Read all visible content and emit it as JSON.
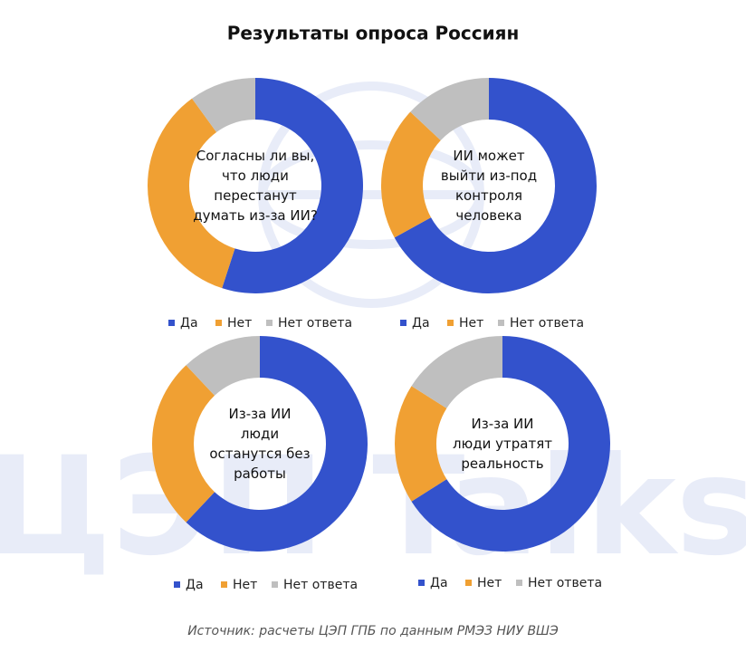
{
  "title": "Результаты опроса Россиян",
  "watermark": "ЦЭП Talks",
  "source": "Источник: расчеты ЦЭП ГПБ по данным РМЭЗ НИУ ВШЭ",
  "chart_data": [
    {
      "type": "donut",
      "title": "Согласны ли вы,\nчто люди перестанут\nдумать из-за ИИ?",
      "categories": [
        "Да",
        "Нет",
        "Нет ответа"
      ],
      "values": [
        55,
        35,
        10
      ],
      "colors": [
        "#3352cc",
        "#f0a033",
        "#bfbfbf"
      ]
    },
    {
      "type": "donut",
      "title": "ИИ может\nвыйти из-под\nконтроля\nчеловека",
      "categories": [
        "Да",
        "Нет",
        "Нет ответа"
      ],
      "values": [
        67,
        20,
        13
      ],
      "colors": [
        "#3352cc",
        "#f0a033",
        "#bfbfbf"
      ]
    },
    {
      "type": "donut",
      "title": "Из-за ИИ\nлюди\nостанутся без\nработы",
      "categories": [
        "Да",
        "Нет",
        "Нет ответа"
      ],
      "values": [
        62,
        26,
        12
      ],
      "colors": [
        "#3352cc",
        "#f0a033",
        "#bfbfbf"
      ]
    },
    {
      "type": "donut",
      "title": "Из-за ИИ\nлюди утратят\nреальность",
      "categories": [
        "Да",
        "Нет",
        "Нет ответа"
      ],
      "values": [
        66,
        18,
        16
      ],
      "colors": [
        "#3352cc",
        "#f0a033",
        "#bfbfbf"
      ]
    }
  ]
}
